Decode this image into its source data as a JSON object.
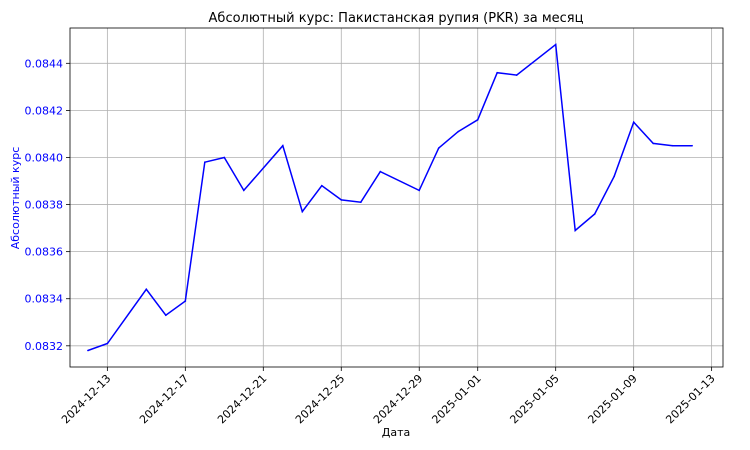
{
  "chart_data": {
    "type": "line",
    "title": "Абсолютный курс: Пакистанская рупия (PKR) за месяц",
    "xlabel": "Дата",
    "ylabel": "Абсолютный курс",
    "x": [
      "2024-12-12",
      "2024-12-13",
      "2024-12-15",
      "2024-12-16",
      "2024-12-17",
      "2024-12-18",
      "2024-12-19",
      "2024-12-20",
      "2024-12-22",
      "2024-12-23",
      "2024-12-24",
      "2024-12-25",
      "2024-12-26",
      "2024-12-27",
      "2024-12-29",
      "2024-12-30",
      "2024-12-31",
      "2025-01-01",
      "2025-01-02",
      "2025-01-03",
      "2025-01-05",
      "2025-01-06",
      "2025-01-07",
      "2025-01-08",
      "2025-01-09",
      "2025-01-10",
      "2025-01-11",
      "2025-01-12"
    ],
    "series": [
      {
        "values": [
          0.08318,
          0.08321,
          0.08344,
          0.08333,
          0.08339,
          0.08398,
          0.084,
          0.08386,
          0.08405,
          0.08377,
          0.08388,
          0.08382,
          0.08381,
          0.08394,
          0.08386,
          0.08404,
          0.08411,
          0.08416,
          0.08436,
          0.08435,
          0.08448,
          0.08369,
          0.08376,
          0.08392,
          0.08415,
          0.08406,
          0.08405,
          0.08405
        ],
        "color": "#0000ff"
      }
    ],
    "xlim": [
      "2024-12-11T02:00",
      "2025-01-13T14:00"
    ],
    "ylim": [
      0.08311,
      0.08455
    ],
    "yticks": [
      0.0832,
      0.0834,
      0.0836,
      0.0838,
      0.084,
      0.0842,
      0.0844
    ],
    "ytick_labels": [
      "0.0832",
      "0.0834",
      "0.0836",
      "0.0838",
      "0.0840",
      "0.0842",
      "0.0844"
    ],
    "xticks": [
      "2024-12-13",
      "2024-12-17",
      "2024-12-21",
      "2024-12-25",
      "2024-12-29",
      "2025-01-01",
      "2025-01-05",
      "2025-01-09",
      "2025-01-13"
    ],
    "grid": true,
    "accent_color": "#0000ff"
  }
}
